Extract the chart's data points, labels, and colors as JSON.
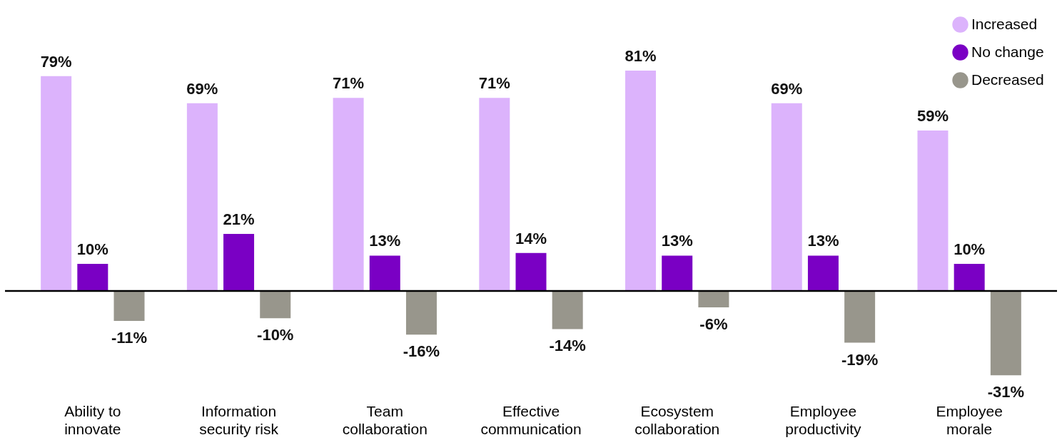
{
  "chart_data": {
    "type": "bar",
    "categories": [
      "Ability to innovate",
      "Information security risk",
      "Team collaboration",
      "Effective communication",
      "Ecosystem collaboration",
      "Employee productivity",
      "Employee morale"
    ],
    "series": [
      {
        "name": "Increased",
        "color": "#dcb3fc",
        "values": [
          79,
          69,
          71,
          71,
          81,
          69,
          59
        ],
        "value_labels": [
          "79%",
          "69%",
          "71%",
          "71%",
          "81%",
          "69%",
          "59%"
        ]
      },
      {
        "name": "No change",
        "color": "#7a00c4",
        "values": [
          10,
          21,
          13,
          14,
          13,
          13,
          10
        ],
        "value_labels": [
          "10%",
          "21%",
          "13%",
          "14%",
          "13%",
          "13%",
          "10%"
        ]
      },
      {
        "name": "Decreased",
        "color": "#98968c",
        "values": [
          -11,
          -10,
          -16,
          -14,
          -6,
          -19,
          -31
        ],
        "value_labels": [
          "-11%",
          "-10%",
          "-16%",
          "-14%",
          "-6%",
          "-19%",
          "-31%"
        ]
      }
    ],
    "legend": "top right"
  }
}
